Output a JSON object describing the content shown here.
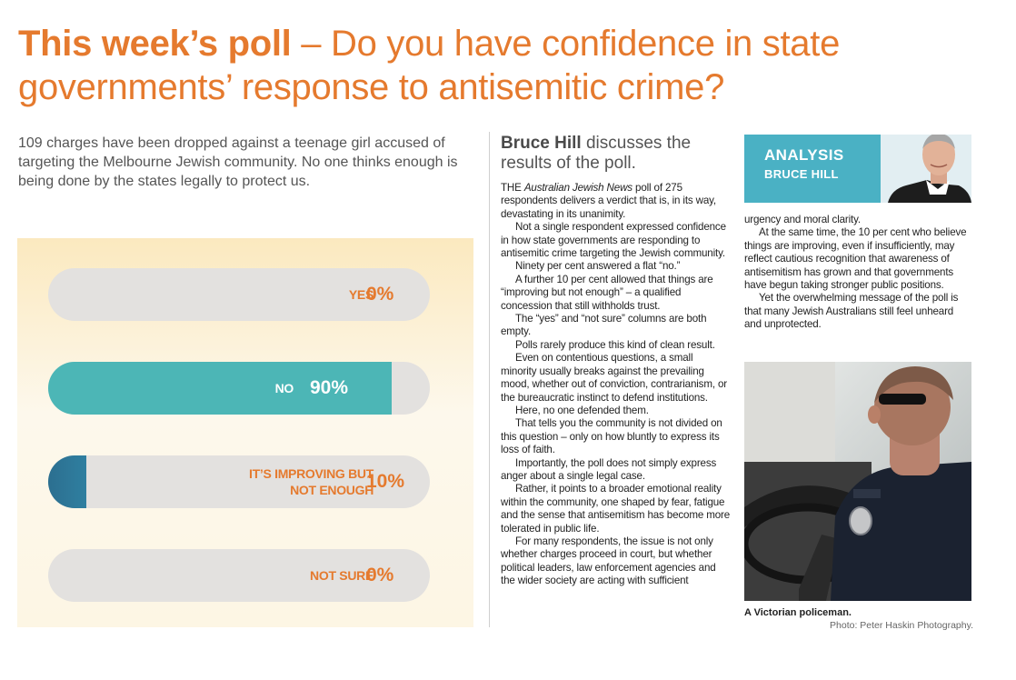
{
  "headline": {
    "bold": "This week’s poll",
    "rest": " – Do you have confidence in state governments’ response to antisemitic crime?"
  },
  "intro": "109 charges have been dropped against a teenage girl accused of targeting the Melbourne Jewish community. No one thinks enough is being done by the states legally to protect us.",
  "poll": [
    {
      "label_line1": "YES",
      "label_line2": "",
      "value": 0,
      "pct": "0%"
    },
    {
      "label_line1": "NO",
      "label_line2": "",
      "value": 90,
      "pct": "90%"
    },
    {
      "label_line1": "IT’S IMPROVING BUT",
      "label_line2": "NOT ENOUGH",
      "value": 10,
      "pct": "10%"
    },
    {
      "label_line1": "NOT SURE",
      "label_line2": "",
      "value": 0,
      "pct": "0%"
    }
  ],
  "colors": {
    "accent": "#e57a2e",
    "teal": "#4ab1c4",
    "bar_no": "#4cb6b6",
    "bar_improving": "#2f7fa0",
    "track": "#e3e1df"
  },
  "byline": {
    "name": "Bruce Hill",
    "rest": " discusses the results of the poll."
  },
  "analysis": {
    "tag": "ANALYSIS",
    "name": "BRUCE HILL"
  },
  "article": {
    "first": {
      "pre": "THE ",
      "pub": "Australian Jewish News",
      "post": " poll of 275 respondents delivers a verdict that is, in its way, devastating in its unanimity."
    },
    "col1": [
      "Not a single respondent expressed confidence in how state governments are responding to antisemitic crime targeting the Jewish community.",
      "Ninety per cent answered a flat “no.”",
      "A further 10 per cent allowed that things are “improving but not enough” – a qualified concession that still withholds trust.",
      "The “yes” and “not sure” columns are both empty.",
      "Polls rarely produce this kind of clean result.",
      "Even on contentious questions, a small minority usually breaks against the prevailing mood, whether out of conviction, contrarianism, or the bureaucratic instinct to defend institutions.",
      "Here, no one defended them.",
      "That tells you the community is not divided on this question – only on how bluntly to express its loss of faith.",
      "Importantly, the poll does not simply express anger about a single legal case.",
      "Rather, it points to a broader emotional reality within the community, one shaped by fear, fatigue and the sense that antisemitism has become more tolerated in public life.",
      "For many respondents, the issue is not only whether charges proceed in court, but whether political leaders, law enforcement agencies and the wider society are acting with sufficient"
    ],
    "col2_cont": "urgency and moral clarity.",
    "col2": [
      "At the same time, the 10 per cent who believe things are improving, even if insufficiently, may reflect cautious recognition that awareness of antisemitism has grown and that governments have begun taking stronger public positions.",
      "Yet the overwhelming message of the poll is that many Jewish Australians still feel unheard and unprotected."
    ]
  },
  "photo": {
    "caption": "A Victorian policeman.",
    "credit": "Photo: Peter Haskin Photography."
  }
}
